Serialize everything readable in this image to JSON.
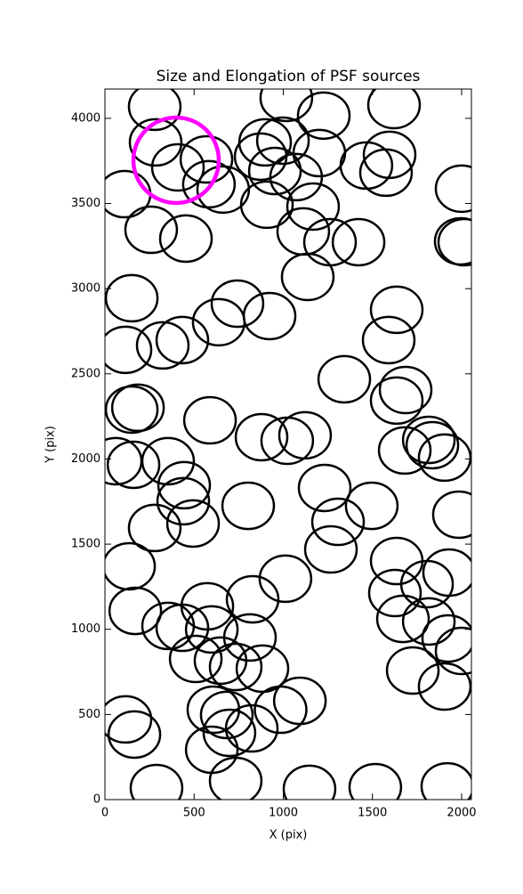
{
  "chart_data": {
    "type": "ellipse",
    "title": "Size and Elongation of PSF sources",
    "xlabel": "X (pix)",
    "ylabel": "Y (pix)",
    "xlim": [
      0,
      2055
    ],
    "ylim": [
      0,
      4172
    ],
    "xticks": [
      0,
      500,
      1000,
      1500,
      2000
    ],
    "yticks": [
      0,
      500,
      1000,
      1500,
      2000,
      2500,
      3000,
      3500,
      4000
    ],
    "sources": {
      "color": "#000000",
      "width": 289,
      "height": 272,
      "x": [
        289,
        733,
        1147,
        1516,
        1920,
        115,
        165,
        599,
        683,
        698,
        823,
        608,
        985,
        1093,
        883,
        733,
        648,
        509,
        434,
        354,
        599,
        813,
        574,
        828,
        170,
        1012,
        135,
        1267,
        1307,
        1496,
        1626,
        1636,
        1671,
        1816,
        1806,
        1930,
        1925,
        2000,
        1905,
        1726,
        279,
        494,
        439,
        444,
        354,
        160,
        60,
        803,
        1232,
        878,
        1022,
        1122,
        589,
        150,
        185,
        1636,
        1686,
        1342,
        1681,
        1816,
        1836,
        1905,
        1985,
        1591,
        1636,
        324,
        434,
        115,
        638,
        743,
        923,
        150,
        1137,
        1262,
        1422,
        1112,
        1167,
        454,
        259,
        110,
        663,
        583,
        569,
        409,
        284,
        279,
        908,
        873,
        898,
        998,
        953,
        1072,
        1202,
        1227,
        1017,
        1466,
        1596,
        1576,
        1621,
        2000,
        1995,
        2015
      ],
      "y": [
        68,
        110,
        63,
        73,
        78,
        471,
        382,
        293,
        497,
        392,
        418,
        528,
        528,
        580,
        769,
        779,
        816,
        826,
        1009,
        1020,
        999,
        952,
        1135,
        1176,
        1108,
        1297,
        1370,
        1469,
        1631,
        1725,
        1213,
        1401,
        1061,
        1046,
        1265,
        1333,
        946,
        873,
        664,
        758,
        1595,
        1621,
        1752,
        1846,
        1987,
        1966,
        1987,
        1725,
        1830,
        2128,
        2107,
        2139,
        2227,
        2290,
        2301,
        2343,
        2405,
        2468,
        2050,
        2112,
        2081,
        2008,
        1673,
        2698,
        2876,
        2667,
        2698,
        2641,
        2803,
        2912,
        2839,
        2944,
        3069,
        3273,
        3273,
        3336,
        3482,
        3294,
        3346,
        3555,
        3582,
        3613,
        3759,
        3712,
        3859,
        4068,
        3493,
        3775,
        3859,
        3869,
        3691,
        3655,
        3796,
        4016,
        4120,
        3723,
        3786,
        3681,
        4078,
        3587,
        3278,
        3273
      ]
    },
    "highlight": {
      "color": "#ff00ff",
      "x": 399,
      "y": 3754,
      "width": 479,
      "height": 502
    }
  }
}
